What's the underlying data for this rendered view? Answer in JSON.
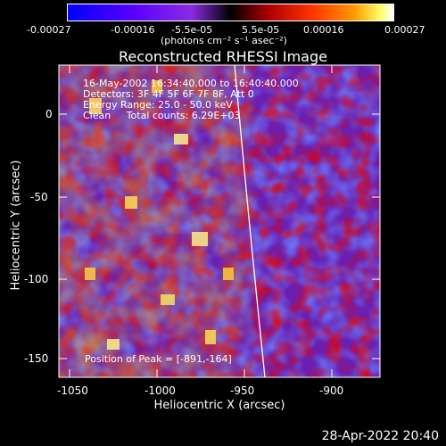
{
  "colorbar": {
    "tick_labels": [
      "-0.00027",
      "-0.00016",
      "-5.5e-05",
      "5.5e-05",
      "0.00016",
      "0.00027"
    ],
    "unit_label": "(photons cm⁻² s⁻¹ asec⁻²)"
  },
  "title": "Reconstructed RHESSI Image",
  "info": {
    "line1": "16-May-2002 16:34:40.000 to 16:40:40.000",
    "line2": "Detectors: 3F 4F 5F 6F 7F 8F, Att 0",
    "line3": "Energy Range: 25.0 - 50.0 keV",
    "line4": "Clean     Total counts: 6.29E+03",
    "peak": "Position of Peak = [-891,-164]"
  },
  "axes": {
    "xlabel": "Heliocentric X (arcsec)",
    "ylabel": "Heliocentric Y (arcsec)",
    "x_ticks": [
      "-1050",
      "-1000",
      "-950",
      "-900"
    ],
    "y_ticks": [
      "0",
      "-50",
      "-100",
      "-150"
    ]
  },
  "footer": {
    "timestamp": "28-Apr-2022 20:40"
  },
  "colors": {
    "plot_bg": "#6a1fb0",
    "limb": "#ffffff"
  }
}
